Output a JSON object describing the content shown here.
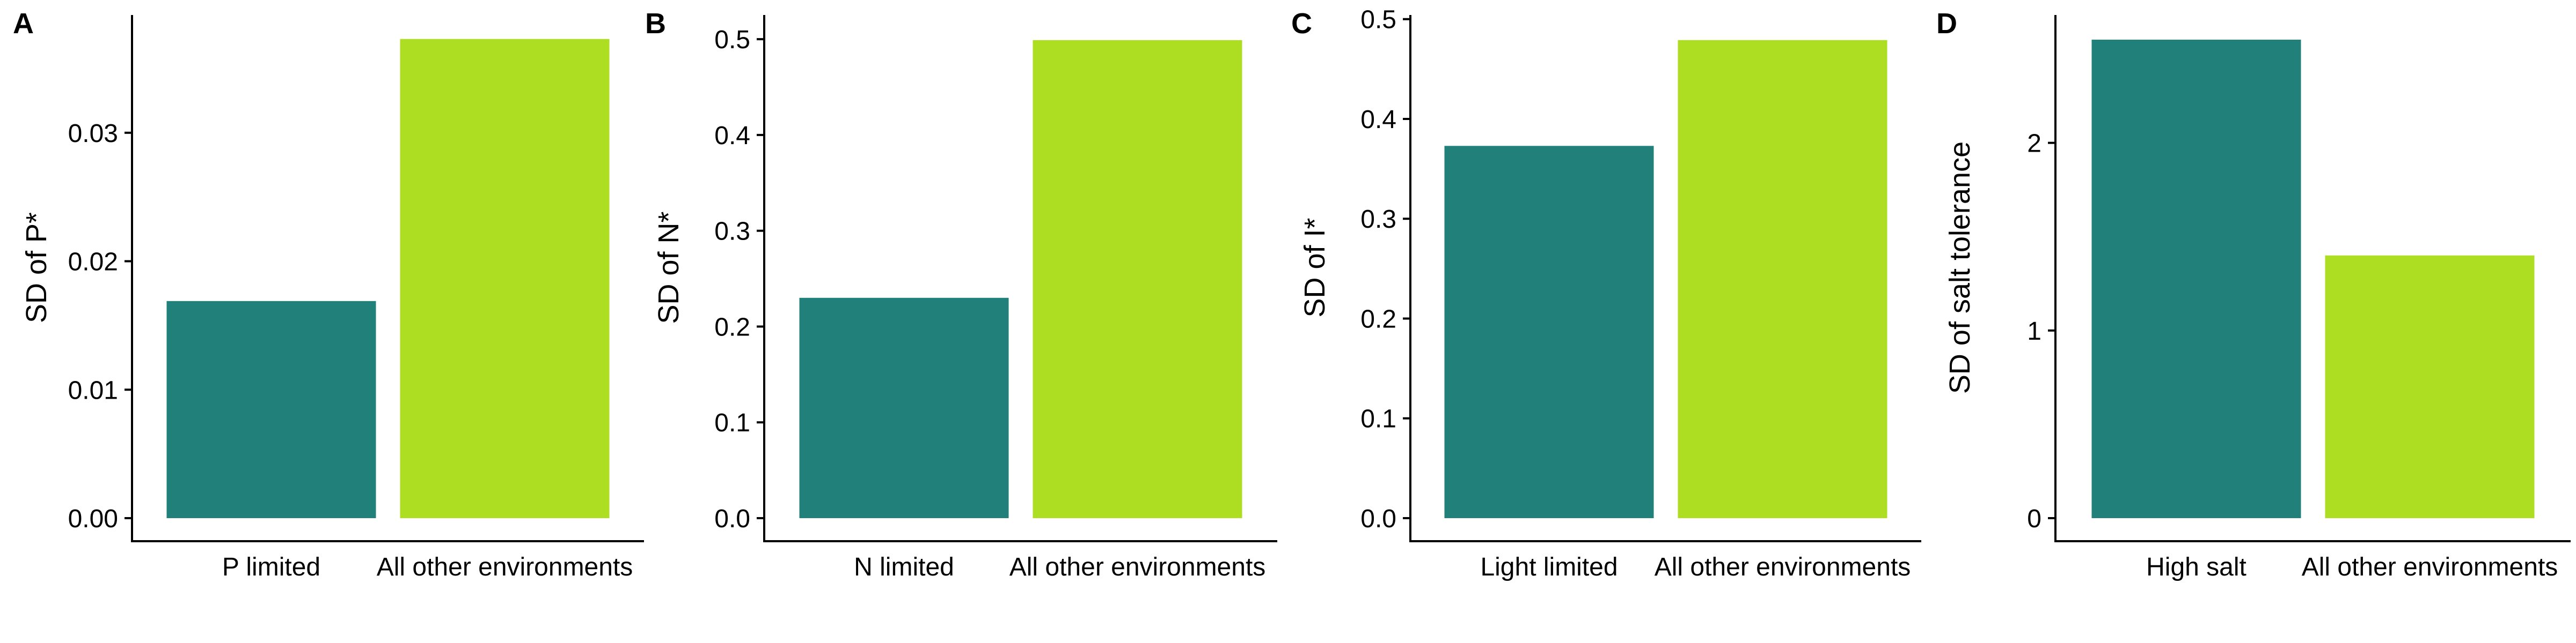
{
  "chart_data": [
    {
      "type": "bar",
      "panel_label": "A",
      "ylabel": "SD of P*",
      "categories": [
        "P limited",
        "All other environments"
      ],
      "values": [
        0.0169,
        0.0373
      ],
      "ylim": [
        0,
        0.039
      ],
      "yticks": [
        0.0,
        0.01,
        0.02,
        0.03
      ],
      "ytick_labels": [
        "0.00",
        "0.01",
        "0.02",
        "0.03"
      ],
      "colors": [
        "#21807A",
        "#AEDE22"
      ],
      "grid": false
    },
    {
      "type": "bar",
      "panel_label": "B",
      "ylabel": "SD of N*",
      "categories": [
        "N limited",
        "All other environments"
      ],
      "values": [
        0.23,
        0.499
      ],
      "ylim": [
        0,
        0.523
      ],
      "yticks": [
        0.0,
        0.1,
        0.2,
        0.3,
        0.4,
        0.5
      ],
      "ytick_labels": [
        "0.0",
        "0.1",
        "0.2",
        "0.3",
        "0.4",
        "0.5"
      ],
      "colors": [
        "#21807A",
        "#AEDE22"
      ],
      "grid": false
    },
    {
      "type": "bar",
      "panel_label": "C",
      "ylabel": "SD of I*",
      "categories": [
        "Light limited",
        "All other environments"
      ],
      "values": [
        0.373,
        0.479
      ],
      "ylim": [
        0,
        0.502
      ],
      "yticks": [
        0.0,
        0.1,
        0.2,
        0.3,
        0.4,
        0.5
      ],
      "ytick_labels": [
        "0.0",
        "0.1",
        "0.2",
        "0.3",
        "0.4",
        "0.5"
      ],
      "colors": [
        "#21807A",
        "#AEDE22"
      ],
      "grid": false
    },
    {
      "type": "bar",
      "panel_label": "D",
      "ylabel": "SD of salt tolerance",
      "categories": [
        "High salt",
        "All other environments"
      ],
      "values": [
        2.55,
        1.4
      ],
      "ylim": [
        0,
        2.67
      ],
      "yticks": [
        0,
        1,
        2
      ],
      "ytick_labels": [
        "0",
        "1",
        "2"
      ],
      "colors": [
        "#21807A",
        "#AEDE22"
      ],
      "grid": false
    }
  ]
}
